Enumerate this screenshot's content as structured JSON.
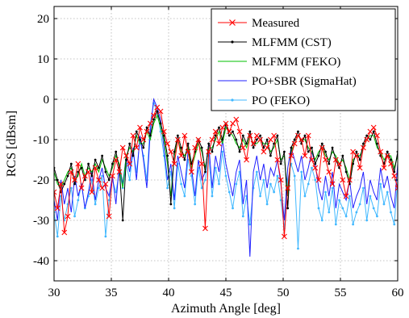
{
  "chart_data": {
    "type": "line",
    "xlabel": "Azimuth Angle [deg]",
    "ylabel": "RCS [dBsm]",
    "xlim": [
      30,
      60
    ],
    "ylim": [
      -45,
      23
    ],
    "xticks": [
      30,
      35,
      40,
      45,
      50,
      55,
      60
    ],
    "yticks": [
      -40,
      -30,
      -20,
      -10,
      0,
      10,
      20
    ],
    "xtick_labels": [
      "30",
      "35",
      "40",
      "45",
      "50",
      "55",
      "60"
    ],
    "ytick_labels": [
      "-40",
      "-30",
      "-20",
      "-10",
      "0",
      "10",
      "20"
    ],
    "grid": true,
    "legend_position": "top-right",
    "series": [
      {
        "name": "Measured",
        "color": "#ff0000",
        "marker": "x",
        "x": [
          30.0,
          30.3,
          30.6,
          30.9,
          31.2,
          31.5,
          31.8,
          32.1,
          32.4,
          32.7,
          33.0,
          33.3,
          33.6,
          33.9,
          34.2,
          34.5,
          34.8,
          35.1,
          35.4,
          35.7,
          36.0,
          36.3,
          36.6,
          36.9,
          37.2,
          37.5,
          37.8,
          38.1,
          38.4,
          38.7,
          39.0,
          39.3,
          39.6,
          39.9,
          40.2,
          40.5,
          40.8,
          41.1,
          41.4,
          41.7,
          42.0,
          42.3,
          42.6,
          42.9,
          43.2,
          43.5,
          43.8,
          44.1,
          44.4,
          44.7,
          45.0,
          45.3,
          45.6,
          45.9,
          46.2,
          46.5,
          46.8,
          47.1,
          47.4,
          47.7,
          48.0,
          48.3,
          48.6,
          48.9,
          49.2,
          49.5,
          49.8,
          50.1,
          50.4,
          50.7,
          51.0,
          51.3,
          51.6,
          51.9,
          52.2,
          52.5,
          52.8,
          53.1,
          53.4,
          53.7,
          54.0,
          54.3,
          54.6,
          54.9,
          55.2,
          55.5,
          55.8,
          56.1,
          56.4,
          56.7,
          57.0,
          57.3,
          57.6,
          57.9,
          58.2,
          58.5,
          58.8,
          59.1,
          59.4,
          59.7,
          60.0
        ],
        "y": [
          -23,
          -27,
          -21,
          -33,
          -29,
          -18,
          -20,
          -16,
          -22,
          -19,
          -18,
          -23,
          -17,
          -20,
          -22,
          -21,
          -29,
          -19,
          -15,
          -18,
          -12,
          -14,
          -16,
          -9,
          -12,
          -7,
          -10,
          -8,
          -6,
          -4,
          -2,
          -3,
          -8,
          -11,
          -13,
          -16,
          -10,
          -14,
          -9,
          -13,
          -18,
          -12,
          -10,
          -16,
          -32,
          -13,
          -10,
          -8,
          -11,
          -7,
          -6,
          -8,
          -6,
          -5,
          -8,
          -12,
          -15,
          -9,
          -11,
          -9,
          -10,
          -13,
          -12,
          -10,
          -9,
          -15,
          -20,
          -34,
          -22,
          -14,
          -11,
          -9,
          -10,
          -14,
          -9,
          -15,
          -17,
          -20,
          -12,
          -15,
          -18,
          -21,
          -15,
          -16,
          -20,
          -24,
          -20,
          -13,
          -14,
          -17,
          -12,
          -10,
          -8,
          -7,
          -9,
          -13,
          -17,
          -14,
          -16,
          -19,
          -22
        ]
      },
      {
        "name": "MLFMM (CST)",
        "color": "#000000",
        "marker": "dot",
        "x": [
          30.0,
          30.3,
          30.6,
          30.9,
          31.2,
          31.5,
          31.8,
          32.1,
          32.4,
          32.7,
          33.0,
          33.3,
          33.6,
          33.9,
          34.2,
          34.5,
          34.8,
          35.1,
          35.4,
          35.7,
          36.0,
          36.3,
          36.6,
          36.9,
          37.2,
          37.5,
          37.8,
          38.1,
          38.4,
          38.7,
          39.0,
          39.3,
          39.6,
          39.9,
          40.2,
          40.5,
          40.8,
          41.1,
          41.4,
          41.7,
          42.0,
          42.3,
          42.6,
          42.9,
          43.2,
          43.5,
          43.8,
          44.1,
          44.4,
          44.7,
          45.0,
          45.3,
          45.6,
          45.9,
          46.2,
          46.5,
          46.8,
          47.1,
          47.4,
          47.7,
          48.0,
          48.3,
          48.6,
          48.9,
          49.2,
          49.5,
          49.8,
          50.1,
          50.4,
          50.7,
          51.0,
          51.3,
          51.6,
          51.9,
          52.2,
          52.5,
          52.8,
          53.1,
          53.4,
          53.7,
          54.0,
          54.3,
          54.6,
          54.9,
          55.2,
          55.5,
          55.8,
          56.1,
          56.4,
          56.7,
          57.0,
          57.3,
          57.6,
          57.9,
          58.2,
          58.5,
          58.8,
          59.1,
          59.4,
          59.7,
          60.0
        ],
        "y": [
          -17,
          -20,
          -23,
          -21,
          -19,
          -16,
          -21,
          -18,
          -17,
          -20,
          -16,
          -19,
          -15,
          -17,
          -14,
          -18,
          -20,
          -16,
          -13,
          -17,
          -30,
          -15,
          -11,
          -14,
          -8,
          -10,
          -12,
          -7,
          -9,
          -5,
          -3,
          -6,
          -9,
          -14,
          -26,
          -13,
          -9,
          -12,
          -15,
          -11,
          -16,
          -13,
          -10,
          -12,
          -18,
          -11,
          -13,
          -9,
          -7,
          -10,
          -6,
          -9,
          -8,
          -10,
          -13,
          -9,
          -11,
          -8,
          -12,
          -10,
          -9,
          -12,
          -10,
          -14,
          -11,
          -9,
          -16,
          -13,
          -27,
          -12,
          -10,
          -8,
          -11,
          -9,
          -13,
          -12,
          -16,
          -14,
          -11,
          -13,
          -16,
          -12,
          -15,
          -17,
          -14,
          -18,
          -21,
          -16,
          -13,
          -15,
          -11,
          -9,
          -10,
          -8,
          -11,
          -14,
          -16,
          -13,
          -15,
          -18,
          -13
        ]
      },
      {
        "name": "MLFMM (FEKO)",
        "color": "#00c000",
        "marker": "none",
        "x": [
          30.0,
          30.3,
          30.6,
          30.9,
          31.2,
          31.5,
          31.8,
          32.1,
          32.4,
          32.7,
          33.0,
          33.3,
          33.6,
          33.9,
          34.2,
          34.5,
          34.8,
          35.1,
          35.4,
          35.7,
          36.0,
          36.3,
          36.6,
          36.9,
          37.2,
          37.5,
          37.8,
          38.1,
          38.4,
          38.7,
          39.0,
          39.3,
          39.6,
          39.9,
          40.2,
          40.5,
          40.8,
          41.1,
          41.4,
          41.7,
          42.0,
          42.3,
          42.6,
          42.9,
          43.2,
          43.5,
          43.8,
          44.1,
          44.4,
          44.7,
          45.0,
          45.3,
          45.6,
          45.9,
          46.2,
          46.5,
          46.8,
          47.1,
          47.4,
          47.7,
          48.0,
          48.3,
          48.6,
          48.9,
          49.2,
          49.5,
          49.8,
          50.1,
          50.4,
          50.7,
          51.0,
          51.3,
          51.6,
          51.9,
          52.2,
          52.5,
          52.8,
          53.1,
          53.4,
          53.7,
          54.0,
          54.3,
          54.6,
          54.9,
          55.2,
          55.5,
          55.8,
          56.1,
          56.4,
          56.7,
          57.0,
          57.3,
          57.6,
          57.9,
          58.2,
          58.5,
          58.8,
          59.1,
          59.4,
          59.7,
          60.0
        ],
        "y": [
          -18,
          -21,
          -22,
          -20,
          -18,
          -17,
          -20,
          -19,
          -16,
          -19,
          -17,
          -18,
          -16,
          -18,
          -15,
          -17,
          -19,
          -17,
          -14,
          -16,
          -22,
          -14,
          -12,
          -13,
          -9,
          -11,
          -11,
          -8,
          -10,
          -6,
          -4,
          -7,
          -10,
          -16,
          -24,
          -14,
          -10,
          -13,
          -14,
          -12,
          -17,
          -14,
          -11,
          -13,
          -17,
          -12,
          -12,
          -10,
          -8,
          -11,
          -7,
          -8,
          -9,
          -11,
          -12,
          -10,
          -12,
          -9,
          -11,
          -11,
          -10,
          -11,
          -11,
          -13,
          -12,
          -10,
          -15,
          -14,
          -24,
          -13,
          -11,
          -9,
          -10,
          -10,
          -12,
          -13,
          -15,
          -13,
          -12,
          -14,
          -15,
          -13,
          -14,
          -16,
          -15,
          -17,
          -20,
          -15,
          -14,
          -14,
          -12,
          -10,
          -9,
          -9,
          -12,
          -13,
          -15,
          -14,
          -14,
          -17,
          -14
        ]
      },
      {
        "name": "PO+SBR (SigmaHat)",
        "color": "#2020ff",
        "marker": "none",
        "x": [
          30.0,
          30.3,
          30.6,
          30.9,
          31.2,
          31.5,
          31.8,
          32.1,
          32.4,
          32.7,
          33.0,
          33.3,
          33.6,
          33.9,
          34.2,
          34.5,
          34.8,
          35.1,
          35.4,
          35.7,
          36.0,
          36.3,
          36.6,
          36.9,
          37.2,
          37.5,
          37.8,
          38.1,
          38.4,
          38.7,
          39.0,
          39.3,
          39.6,
          39.9,
          40.2,
          40.5,
          40.8,
          41.1,
          41.4,
          41.7,
          42.0,
          42.3,
          42.6,
          42.9,
          43.2,
          43.5,
          43.8,
          44.1,
          44.4,
          44.7,
          45.0,
          45.3,
          45.6,
          45.9,
          46.2,
          46.5,
          46.8,
          47.1,
          47.4,
          47.7,
          48.0,
          48.3,
          48.6,
          48.9,
          49.2,
          49.5,
          49.8,
          50.1,
          50.4,
          50.7,
          51.0,
          51.3,
          51.6,
          51.9,
          52.2,
          52.5,
          52.8,
          53.1,
          53.4,
          53.7,
          54.0,
          54.3,
          54.6,
          54.9,
          55.2,
          55.5,
          55.8,
          56.1,
          56.4,
          56.7,
          57.0,
          57.3,
          57.6,
          57.9,
          58.2,
          58.5,
          58.8,
          59.1,
          59.4,
          59.7,
          60.0
        ],
        "y": [
          -25,
          -30,
          -20,
          -26,
          -22,
          -28,
          -19,
          -24,
          -21,
          -27,
          -23,
          -18,
          -25,
          -20,
          -17,
          -22,
          -24,
          -19,
          -26,
          -16,
          -21,
          -14,
          -18,
          -12,
          -20,
          -9,
          -15,
          -22,
          -8,
          0,
          -2,
          -5,
          -12,
          -20,
          -16,
          -25,
          -14,
          -18,
          -22,
          -13,
          -17,
          -24,
          -15,
          -20,
          -18,
          -11,
          -22,
          -14,
          -18,
          -10,
          -16,
          -20,
          -24,
          -18,
          -15,
          -26,
          -20,
          -39,
          -18,
          -14,
          -20,
          -16,
          -22,
          -17,
          -19,
          -15,
          -21,
          -30,
          -17,
          -12,
          -15,
          -18,
          -14,
          -20,
          -17,
          -13,
          -16,
          -22,
          -25,
          -19,
          -24,
          -18,
          -27,
          -21,
          -23,
          -25,
          -20,
          -27,
          -24,
          -22,
          -18,
          -26,
          -20,
          -23,
          -25,
          -17,
          -22,
          -19,
          -24,
          -27,
          -16
        ]
      },
      {
        "name": "PO (FEKO)",
        "color": "#40b8ff",
        "marker": "dot",
        "x": [
          30.0,
          30.3,
          30.6,
          30.9,
          31.2,
          31.5,
          31.8,
          32.1,
          32.4,
          32.7,
          33.0,
          33.3,
          33.6,
          33.9,
          34.2,
          34.5,
          34.8,
          35.1,
          35.4,
          35.7,
          36.0,
          36.3,
          36.6,
          36.9,
          37.2,
          37.5,
          37.8,
          38.1,
          38.4,
          38.7,
          39.0,
          39.3,
          39.6,
          39.9,
          40.2,
          40.5,
          40.8,
          41.1,
          41.4,
          41.7,
          42.0,
          42.3,
          42.6,
          42.9,
          43.2,
          43.5,
          43.8,
          44.1,
          44.4,
          44.7,
          45.0,
          45.3,
          45.6,
          45.9,
          46.2,
          46.5,
          46.8,
          47.1,
          47.4,
          47.7,
          48.0,
          48.3,
          48.6,
          48.9,
          49.2,
          49.5,
          49.8,
          50.1,
          50.4,
          50.7,
          51.0,
          51.3,
          51.6,
          51.9,
          52.2,
          52.5,
          52.8,
          53.1,
          53.4,
          53.7,
          54.0,
          54.3,
          54.6,
          54.9,
          55.2,
          55.5,
          55.8,
          56.1,
          56.4,
          56.7,
          57.0,
          57.3,
          57.6,
          57.9,
          58.2,
          58.5,
          58.8,
          59.1,
          59.4,
          59.7,
          60.0
        ],
        "y": [
          -28,
          -34,
          -24,
          -30,
          -26,
          -22,
          -29,
          -25,
          -21,
          -27,
          -24,
          -20,
          -26,
          -22,
          -19,
          -34,
          -25,
          -20,
          -23,
          -18,
          -22,
          -16,
          -20,
          -13,
          -18,
          -10,
          -14,
          -20,
          -6,
          -1,
          -3,
          -8,
          -14,
          -22,
          -18,
          -27,
          -16,
          -21,
          -24,
          -15,
          -19,
          -26,
          -17,
          -22,
          -20,
          -14,
          -24,
          -17,
          -21,
          -13,
          -19,
          -23,
          -27,
          -21,
          -18,
          -29,
          -24,
          -31,
          -22,
          -18,
          -24,
          -20,
          -26,
          -21,
          -23,
          -19,
          -25,
          -32,
          -20,
          -16,
          -19,
          -37,
          -18,
          -24,
          -21,
          -17,
          -20,
          -27,
          -30,
          -23,
          -28,
          -22,
          -31,
          -25,
          -27,
          -29,
          -24,
          -31,
          -28,
          -26,
          -22,
          -30,
          -24,
          -27,
          -29,
          -21,
          -26,
          -23,
          -28,
          -31,
          -20
        ]
      }
    ]
  }
}
